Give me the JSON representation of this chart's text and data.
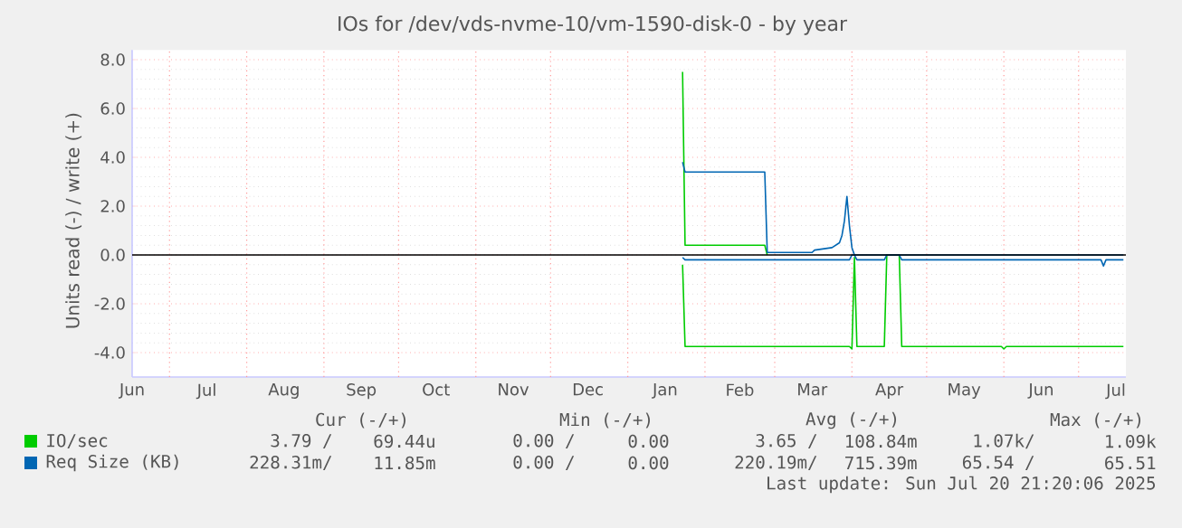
{
  "chart_data": {
    "type": "line",
    "title": "IOs for /dev/vds-nvme-10/vm-1590-disk-0 - by year",
    "ylabel": "Units read (-) / write (+)",
    "xlim": [
      "2024-06-16",
      "2025-07-20"
    ],
    "ylim": [
      -5,
      8.4
    ],
    "xticks": [
      {
        "value": "2024-06-16",
        "label": "Jun"
      },
      {
        "value": "2024-07-16",
        "label": "Jul"
      },
      {
        "value": "2024-08-16",
        "label": "Aug"
      },
      {
        "value": "2024-09-16",
        "label": "Sep"
      },
      {
        "value": "2024-10-16",
        "label": "Oct"
      },
      {
        "value": "2024-11-16",
        "label": "Nov"
      },
      {
        "value": "2024-12-16",
        "label": "Dec"
      },
      {
        "value": "2025-01-16",
        "label": "Jan"
      },
      {
        "value": "2025-02-15",
        "label": "Feb"
      },
      {
        "value": "2025-03-16",
        "label": "Mar"
      },
      {
        "value": "2025-04-16",
        "label": "Apr"
      },
      {
        "value": "2025-05-16",
        "label": "May"
      },
      {
        "value": "2025-06-16",
        "label": "Jun"
      },
      {
        "value": "2025-07-16",
        "label": "Jul"
      },
      {
        "value": "2024-07-01",
        "label": null
      },
      {
        "value": "2024-08-01",
        "label": null
      },
      {
        "value": "2024-09-01",
        "label": null
      },
      {
        "value": "2024-10-01",
        "label": null
      },
      {
        "value": "2024-11-01",
        "label": null
      },
      {
        "value": "2024-12-01",
        "label": null
      },
      {
        "value": "2025-01-01",
        "label": null
      },
      {
        "value": "2025-02-01",
        "label": null
      },
      {
        "value": "2025-03-01",
        "label": null
      },
      {
        "value": "2025-04-01",
        "label": null
      },
      {
        "value": "2025-05-01",
        "label": null
      },
      {
        "value": "2025-06-01",
        "label": null
      },
      {
        "value": "2025-07-01",
        "label": null
      }
    ],
    "yticks": [
      {
        "value": -4,
        "label": "-4.0"
      },
      {
        "value": -2,
        "label": "-2.0"
      },
      {
        "value": 0,
        "label": "0.0"
      },
      {
        "value": 2,
        "label": "2.0"
      },
      {
        "value": 4,
        "label": "4.0"
      },
      {
        "value": 6,
        "label": "6.0"
      },
      {
        "value": 8,
        "label": "8.0"
      }
    ],
    "grid": true,
    "legend": "bottom",
    "ref_lines": [
      {
        "axis": "y",
        "value": 0,
        "color": "#000000"
      }
    ],
    "series": [
      {
        "name": "IO/sec",
        "color": "#00cc00",
        "x": [
          "2025-01-23",
          "2025-01-24",
          "2025-02-25",
          "2025-02-26"
        ],
        "values": [
          7.5,
          0.4,
          0.4,
          0
        ]
      },
      {
        "color": "#00cc00",
        "x": [
          "2025-01-23",
          "2025-01-24",
          "2025-03-31",
          "2025-04-01",
          "2025-04-02",
          "2025-04-03",
          "2025-04-14",
          "2025-04-15",
          "2025-04-20",
          "2025-04-21",
          "2025-05-31",
          "2025-06-01",
          "2025-06-02",
          "2025-07-19"
        ],
        "values": [
          -0.4,
          -3.75,
          -3.75,
          -3.85,
          -0.1,
          -3.75,
          -3.75,
          0,
          0,
          -3.75,
          -3.75,
          -3.85,
          -3.75,
          -3.75
        ]
      },
      {
        "name": "Req Size (KB)",
        "color": "#0066b3",
        "x": [
          "2025-01-23",
          "2025-01-24",
          "2025-02-25",
          "2025-02-26",
          "2025-03-16",
          "2025-03-17",
          "2025-03-24",
          "2025-03-27",
          "2025-03-28",
          "2025-03-29",
          "2025-03-30",
          "2025-03-31",
          "2025-04-01",
          "2025-04-02",
          "2025-07-19"
        ],
        "values": [
          3.8,
          3.4,
          3.4,
          0.1,
          0.1,
          0.2,
          0.3,
          0.5,
          0.8,
          1.4,
          2.4,
          1.2,
          0.3,
          0,
          0
        ]
      },
      {
        "color": "#0066b3",
        "x": [
          "2025-01-23",
          "2025-01-24",
          "2025-03-31",
          "2025-04-01",
          "2025-04-02",
          "2025-04-03",
          "2025-04-14",
          "2025-04-15",
          "2025-04-20",
          "2025-04-21",
          "2025-07-10",
          "2025-07-11",
          "2025-07-12",
          "2025-07-19"
        ],
        "values": [
          -0.1,
          -0.2,
          -0.2,
          0,
          0,
          -0.2,
          -0.2,
          0,
          0,
          -0.2,
          -0.2,
          -0.45,
          -0.2,
          -0.2
        ]
      }
    ],
    "annotations": [
      "Cur (-/+)",
      "Min (-/+)",
      "Avg (-/+)",
      "Max (-/+)",
      "3.79 /",
      "69.44u",
      "0.00 /",
      "0.00",
      "3.65 /",
      "108.84m",
      "1.07k/",
      "1.09k",
      "228.31m/",
      "11.85m",
      "0.00 /",
      "0.00",
      "220.19m/",
      "715.39m",
      "65.54 /",
      "65.51",
      "Last update: Sun Jul 20 21:20:06 2025"
    ]
  }
}
